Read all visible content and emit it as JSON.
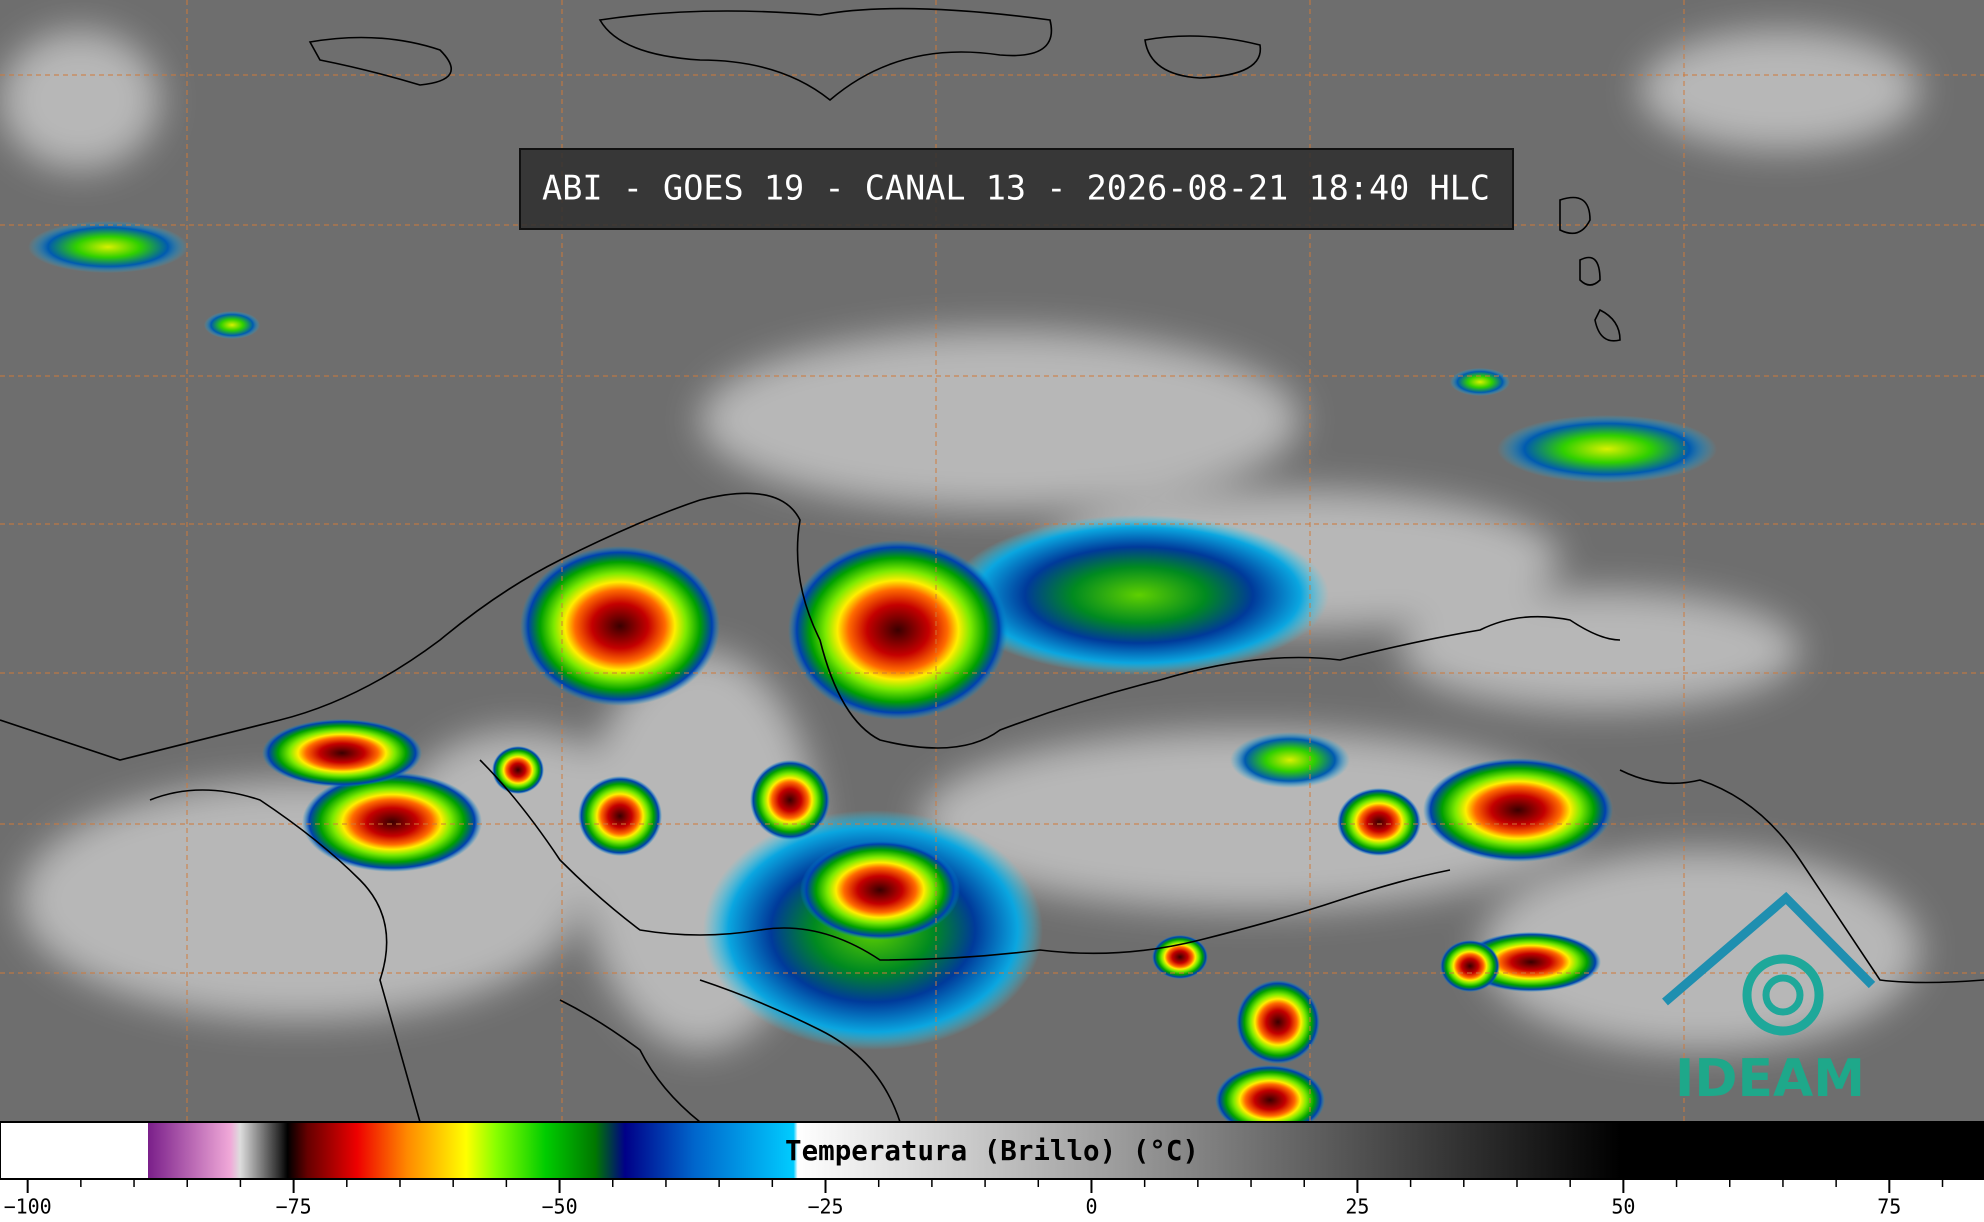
{
  "map": {
    "title": "ABI - GOES 19 - CANAL 13 - 2026-08-21 18:40 HLC",
    "logo": "IDEAM"
  },
  "chart_data": {
    "type": "colorbar",
    "label": "Temperatura (Brillo) (°C)",
    "xlim": [
      -102.6,
      83.9
    ],
    "xticks": [
      {
        "value": -100,
        "label": "−100"
      },
      {
        "value": -75,
        "label": "−75"
      },
      {
        "value": -50,
        "label": "−50"
      },
      {
        "value": -25,
        "label": "−25"
      },
      0,
      25,
      50,
      75
    ],
    "minor_xticks": [
      -95,
      -90,
      -85,
      -80,
      -70,
      -65,
      -60,
      -55,
      -45,
      -40,
      -35,
      -30,
      -20,
      -15,
      -10,
      -5,
      5,
      10,
      15,
      20,
      30,
      35,
      40,
      45,
      55,
      60,
      65,
      70,
      80
    ]
  }
}
